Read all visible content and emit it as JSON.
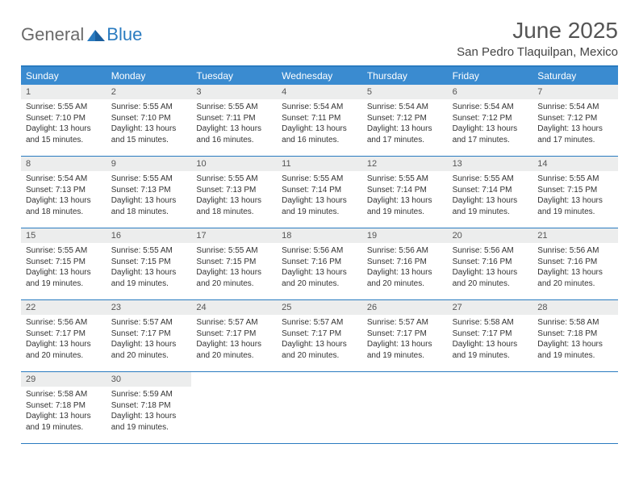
{
  "logo": {
    "word1": "General",
    "word2": "Blue"
  },
  "title": "June 2025",
  "location": "San Pedro Tlaquilpan, Mexico",
  "colors": {
    "header_bg": "#3a8bd0",
    "border": "#2a7bc0",
    "num_bg": "#eceded",
    "logo_gray": "#6a6a6a",
    "logo_blue": "#2a7bc0"
  },
  "day_headers": [
    "Sunday",
    "Monday",
    "Tuesday",
    "Wednesday",
    "Thursday",
    "Friday",
    "Saturday"
  ],
  "weeks": [
    [
      {
        "n": "1",
        "sr": "5:55 AM",
        "ss": "7:10 PM",
        "dl": "13 hours and 15 minutes."
      },
      {
        "n": "2",
        "sr": "5:55 AM",
        "ss": "7:10 PM",
        "dl": "13 hours and 15 minutes."
      },
      {
        "n": "3",
        "sr": "5:55 AM",
        "ss": "7:11 PM",
        "dl": "13 hours and 16 minutes."
      },
      {
        "n": "4",
        "sr": "5:54 AM",
        "ss": "7:11 PM",
        "dl": "13 hours and 16 minutes."
      },
      {
        "n": "5",
        "sr": "5:54 AM",
        "ss": "7:12 PM",
        "dl": "13 hours and 17 minutes."
      },
      {
        "n": "6",
        "sr": "5:54 AM",
        "ss": "7:12 PM",
        "dl": "13 hours and 17 minutes."
      },
      {
        "n": "7",
        "sr": "5:54 AM",
        "ss": "7:12 PM",
        "dl": "13 hours and 17 minutes."
      }
    ],
    [
      {
        "n": "8",
        "sr": "5:54 AM",
        "ss": "7:13 PM",
        "dl": "13 hours and 18 minutes."
      },
      {
        "n": "9",
        "sr": "5:55 AM",
        "ss": "7:13 PM",
        "dl": "13 hours and 18 minutes."
      },
      {
        "n": "10",
        "sr": "5:55 AM",
        "ss": "7:13 PM",
        "dl": "13 hours and 18 minutes."
      },
      {
        "n": "11",
        "sr": "5:55 AM",
        "ss": "7:14 PM",
        "dl": "13 hours and 19 minutes."
      },
      {
        "n": "12",
        "sr": "5:55 AM",
        "ss": "7:14 PM",
        "dl": "13 hours and 19 minutes."
      },
      {
        "n": "13",
        "sr": "5:55 AM",
        "ss": "7:14 PM",
        "dl": "13 hours and 19 minutes."
      },
      {
        "n": "14",
        "sr": "5:55 AM",
        "ss": "7:15 PM",
        "dl": "13 hours and 19 minutes."
      }
    ],
    [
      {
        "n": "15",
        "sr": "5:55 AM",
        "ss": "7:15 PM",
        "dl": "13 hours and 19 minutes."
      },
      {
        "n": "16",
        "sr": "5:55 AM",
        "ss": "7:15 PM",
        "dl": "13 hours and 19 minutes."
      },
      {
        "n": "17",
        "sr": "5:55 AM",
        "ss": "7:15 PM",
        "dl": "13 hours and 20 minutes."
      },
      {
        "n": "18",
        "sr": "5:56 AM",
        "ss": "7:16 PM",
        "dl": "13 hours and 20 minutes."
      },
      {
        "n": "19",
        "sr": "5:56 AM",
        "ss": "7:16 PM",
        "dl": "13 hours and 20 minutes."
      },
      {
        "n": "20",
        "sr": "5:56 AM",
        "ss": "7:16 PM",
        "dl": "13 hours and 20 minutes."
      },
      {
        "n": "21",
        "sr": "5:56 AM",
        "ss": "7:16 PM",
        "dl": "13 hours and 20 minutes."
      }
    ],
    [
      {
        "n": "22",
        "sr": "5:56 AM",
        "ss": "7:17 PM",
        "dl": "13 hours and 20 minutes."
      },
      {
        "n": "23",
        "sr": "5:57 AM",
        "ss": "7:17 PM",
        "dl": "13 hours and 20 minutes."
      },
      {
        "n": "24",
        "sr": "5:57 AM",
        "ss": "7:17 PM",
        "dl": "13 hours and 20 minutes."
      },
      {
        "n": "25",
        "sr": "5:57 AM",
        "ss": "7:17 PM",
        "dl": "13 hours and 20 minutes."
      },
      {
        "n": "26",
        "sr": "5:57 AM",
        "ss": "7:17 PM",
        "dl": "13 hours and 19 minutes."
      },
      {
        "n": "27",
        "sr": "5:58 AM",
        "ss": "7:17 PM",
        "dl": "13 hours and 19 minutes."
      },
      {
        "n": "28",
        "sr": "5:58 AM",
        "ss": "7:18 PM",
        "dl": "13 hours and 19 minutes."
      }
    ],
    [
      {
        "n": "29",
        "sr": "5:58 AM",
        "ss": "7:18 PM",
        "dl": "13 hours and 19 minutes."
      },
      {
        "n": "30",
        "sr": "5:59 AM",
        "ss": "7:18 PM",
        "dl": "13 hours and 19 minutes."
      },
      null,
      null,
      null,
      null,
      null
    ]
  ],
  "labels": {
    "sunrise": "Sunrise: ",
    "sunset": "Sunset: ",
    "daylight": "Daylight: "
  }
}
